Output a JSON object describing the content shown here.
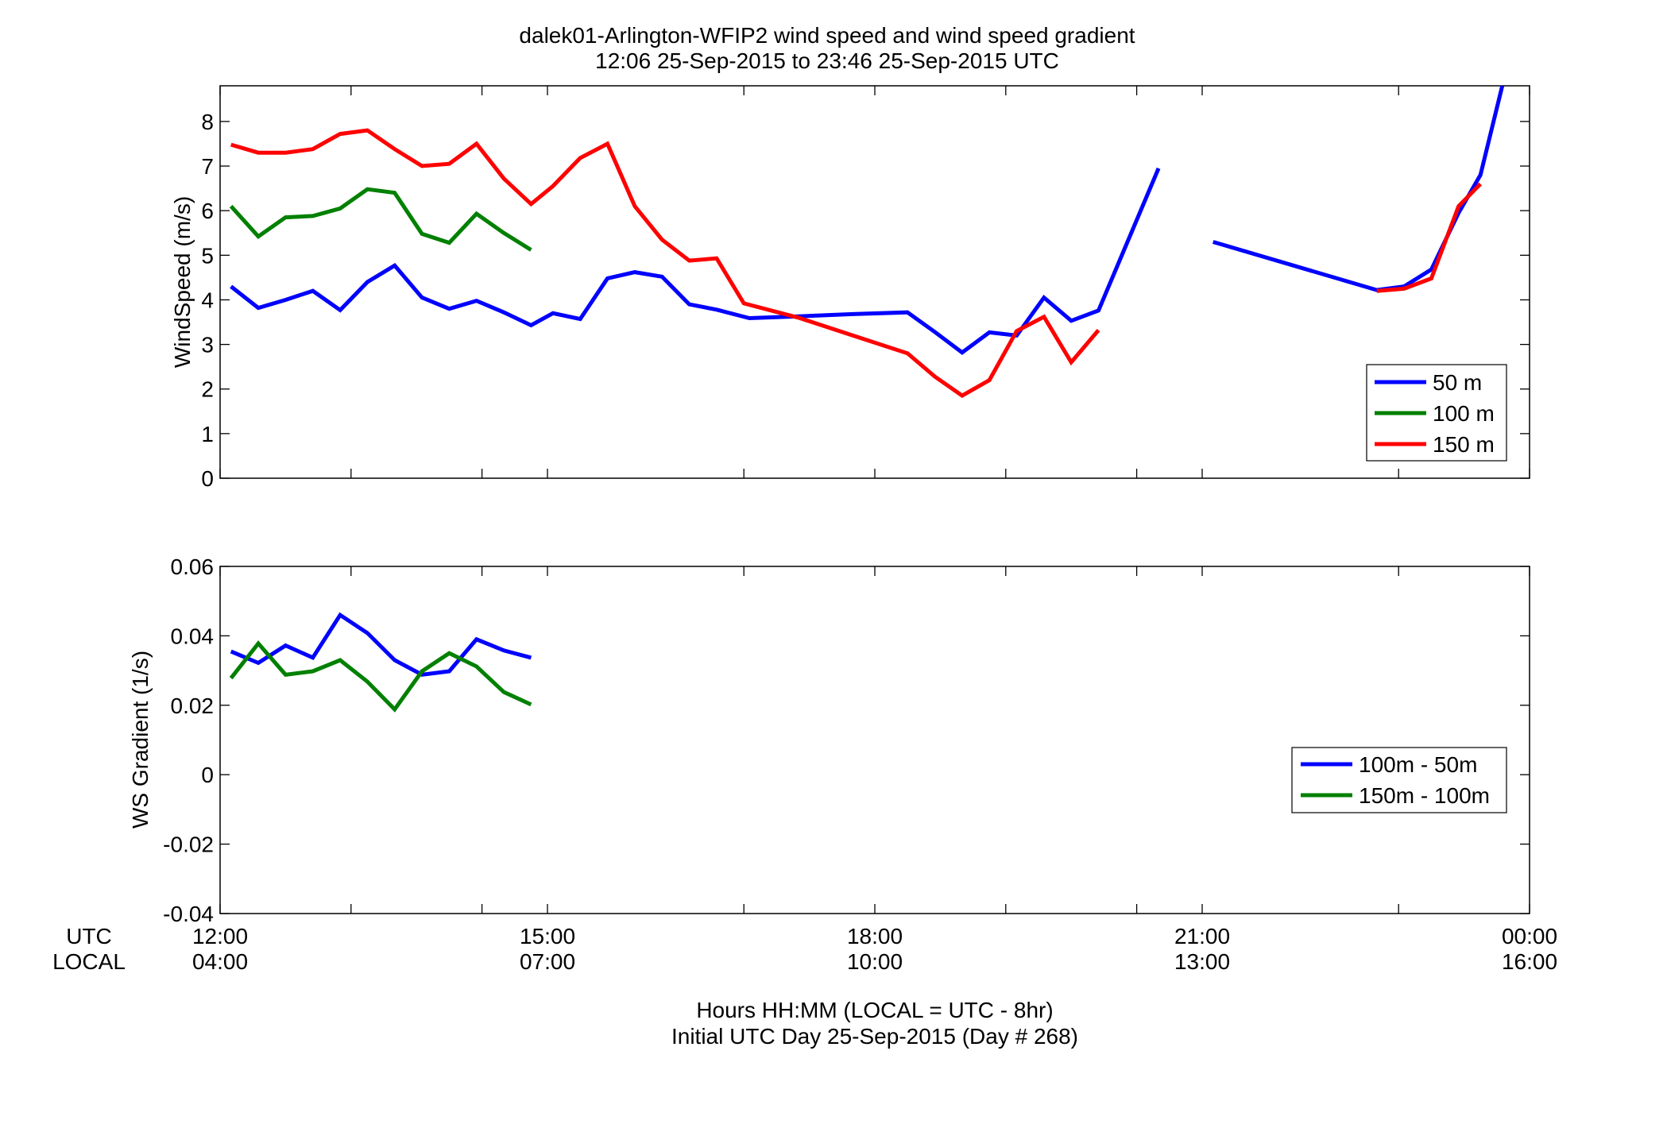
{
  "figure": {
    "title_line1": "dalek01-Arlington-WFIP2  wind speed and wind speed gradient",
    "title_line2": "12:06 25-Sep-2015 to 23:46 25-Sep-2015  UTC",
    "row_label_utc": "UTC",
    "row_label_local": "LOCAL",
    "xlabel_line1": "Hours HH:MM  (LOCAL = UTC - 8hr)",
    "xlabel_line2": "Initial UTC Day 25-Sep-2015 (Day # 268)",
    "colors": {
      "blue": "#0000ff",
      "green": "#008000",
      "red": "#ff0000"
    }
  },
  "chart_data": [
    {
      "type": "line",
      "ylabel": "WindSpeed (m/s)",
      "xlim": [
        12.0,
        24.0
      ],
      "ylim": [
        0,
        8.8
      ],
      "yticks": [
        0,
        1,
        2,
        3,
        4,
        5,
        6,
        7,
        8
      ],
      "grid": false,
      "legend_position": "lower-right",
      "series": [
        {
          "name": "50 m",
          "color": "#0000ff",
          "segments": [
            [
              [
                12.1,
                4.3
              ],
              [
                12.35,
                3.82
              ],
              [
                12.6,
                4.0
              ],
              [
                12.85,
                4.2
              ],
              [
                13.1,
                3.77
              ],
              [
                13.35,
                4.4
              ],
              [
                13.6,
                4.77
              ],
              [
                13.85,
                4.05
              ],
              [
                14.1,
                3.8
              ],
              [
                14.35,
                3.98
              ],
              [
                14.6,
                3.72
              ],
              [
                14.85,
                3.43
              ],
              [
                15.05,
                3.7
              ],
              [
                15.3,
                3.57
              ],
              [
                15.55,
                4.48
              ],
              [
                15.8,
                4.62
              ],
              [
                16.05,
                4.52
              ],
              [
                16.3,
                3.9
              ],
              [
                16.55,
                3.78
              ],
              [
                16.85,
                3.59
              ],
              [
                17.3,
                3.63
              ],
              [
                17.8,
                3.68
              ],
              [
                18.3,
                3.72
              ],
              [
                18.55,
                3.28
              ],
              [
                18.8,
                2.82
              ],
              [
                19.05,
                3.27
              ],
              [
                19.3,
                3.2
              ],
              [
                19.55,
                4.05
              ],
              [
                19.8,
                3.53
              ],
              [
                20.05,
                3.76
              ],
              [
                20.6,
                6.95
              ]
            ],
            [
              [
                21.1,
                5.3
              ],
              [
                22.6,
                4.22
              ],
              [
                22.85,
                4.3
              ],
              [
                23.1,
                4.68
              ],
              [
                23.35,
                5.95
              ],
              [
                23.55,
                6.8
              ],
              [
                23.75,
                8.8
              ]
            ]
          ]
        },
        {
          "name": "100 m",
          "color": "#008000",
          "segments": [
            [
              [
                12.1,
                6.1
              ],
              [
                12.35,
                5.42
              ],
              [
                12.6,
                5.85
              ],
              [
                12.85,
                5.88
              ],
              [
                13.1,
                6.05
              ],
              [
                13.35,
                6.48
              ],
              [
                13.6,
                6.4
              ],
              [
                13.85,
                5.48
              ],
              [
                14.1,
                5.28
              ],
              [
                14.35,
                5.93
              ],
              [
                14.6,
                5.5
              ],
              [
                14.85,
                5.12
              ]
            ]
          ]
        },
        {
          "name": "150 m",
          "color": "#ff0000",
          "segments": [
            [
              [
                12.1,
                7.48
              ],
              [
                12.35,
                7.3
              ],
              [
                12.6,
                7.3
              ],
              [
                12.85,
                7.38
              ],
              [
                13.1,
                7.72
              ],
              [
                13.35,
                7.8
              ],
              [
                13.6,
                7.38
              ],
              [
                13.85,
                7.0
              ],
              [
                14.1,
                7.05
              ],
              [
                14.35,
                7.5
              ],
              [
                14.6,
                6.72
              ],
              [
                14.85,
                6.15
              ],
              [
                15.05,
                6.55
              ],
              [
                15.3,
                7.18
              ],
              [
                15.55,
                7.5
              ],
              [
                15.8,
                6.1
              ],
              [
                16.05,
                5.35
              ],
              [
                16.3,
                4.88
              ],
              [
                16.55,
                4.93
              ],
              [
                16.8,
                3.92
              ],
              [
                17.3,
                3.6
              ],
              [
                17.8,
                3.2
              ],
              [
                18.3,
                2.8
              ],
              [
                18.55,
                2.28
              ],
              [
                18.8,
                1.85
              ],
              [
                19.05,
                2.2
              ],
              [
                19.3,
                3.3
              ],
              [
                19.55,
                3.62
              ],
              [
                19.8,
                2.6
              ],
              [
                20.05,
                3.32
              ]
            ],
            [
              [
                22.6,
                4.2
              ],
              [
                22.85,
                4.25
              ],
              [
                23.1,
                4.48
              ],
              [
                23.35,
                6.1
              ],
              [
                23.55,
                6.6
              ]
            ]
          ]
        }
      ]
    },
    {
      "type": "line",
      "ylabel": "WS Gradient (1/s)",
      "xlim": [
        12.0,
        24.0
      ],
      "ylim": [
        -0.04,
        0.06
      ],
      "yticks": [
        "-0.04",
        "-0.02",
        "0",
        "0.02",
        "0.04",
        "0.06"
      ],
      "grid": false,
      "legend_position": "right",
      "series": [
        {
          "name": "100m - 50m",
          "color": "#0000ff",
          "segments": [
            [
              [
                12.1,
                0.0355
              ],
              [
                12.35,
                0.0322
              ],
              [
                12.6,
                0.0372
              ],
              [
                12.85,
                0.0337
              ],
              [
                13.1,
                0.046
              ],
              [
                13.35,
                0.0408
              ],
              [
                13.6,
                0.033
              ],
              [
                13.85,
                0.0288
              ],
              [
                14.1,
                0.0298
              ],
              [
                14.35,
                0.039
              ],
              [
                14.6,
                0.0358
              ],
              [
                14.85,
                0.0337
              ]
            ]
          ]
        },
        {
          "name": "150m - 100m",
          "color": "#008000",
          "segments": [
            [
              [
                12.1,
                0.0278
              ],
              [
                12.35,
                0.0378
              ],
              [
                12.6,
                0.0288
              ],
              [
                12.85,
                0.0298
              ],
              [
                13.1,
                0.033
              ],
              [
                13.35,
                0.0268
              ],
              [
                13.6,
                0.0188
              ],
              [
                13.85,
                0.0298
              ],
              [
                14.1,
                0.035
              ],
              [
                14.35,
                0.0312
              ],
              [
                14.6,
                0.0238
              ],
              [
                14.85,
                0.0202
              ]
            ]
          ]
        }
      ]
    }
  ],
  "x_axis": {
    "ticks_utc": [
      "12:00",
      "15:00",
      "18:00",
      "21:00",
      "00:00"
    ],
    "ticks_local": [
      "04:00",
      "07:00",
      "10:00",
      "13:00",
      "16:00"
    ],
    "tick_values": [
      12,
      15,
      18,
      21,
      24
    ],
    "minor_tick_values": [
      13.2,
      14.4,
      16.8,
      19.2,
      20.4,
      22.8
    ]
  }
}
